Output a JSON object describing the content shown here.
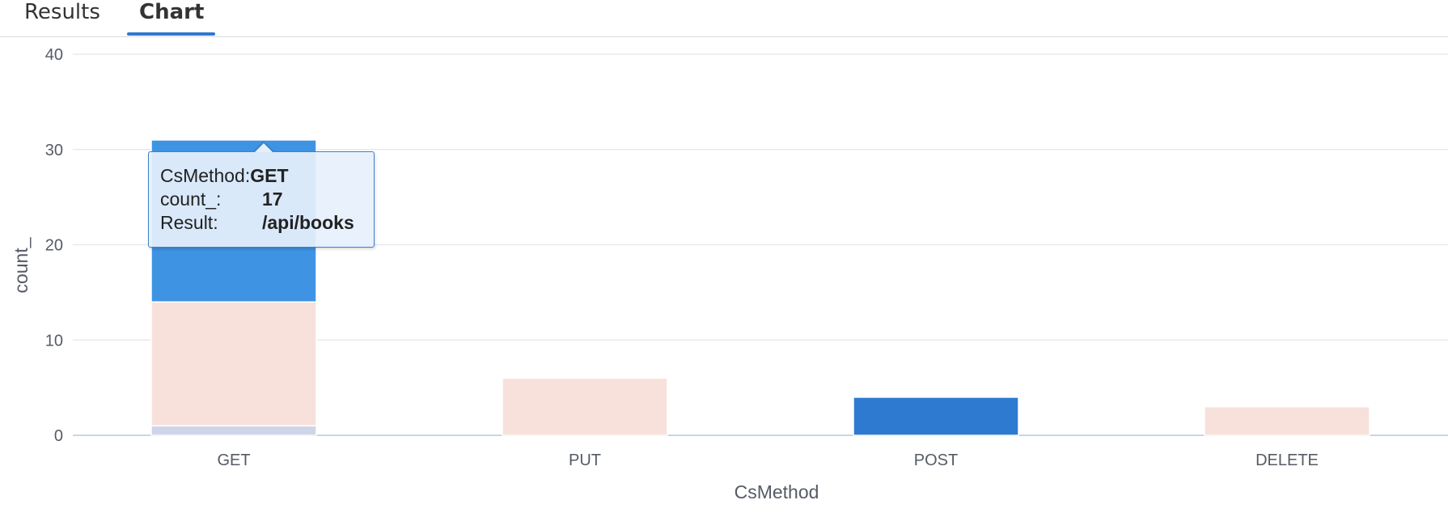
{
  "tabs": [
    {
      "label": "Results",
      "active": false
    },
    {
      "label": "Chart",
      "active": true
    }
  ],
  "colors": {
    "accent": "#2f78d0",
    "series_blue": "#3f93e3",
    "series_blue_dark": "#2f7ad1",
    "series_peach": "#f8e1db",
    "series_lavender": "#cfd5e8",
    "grid": "#e3e6ea",
    "baseline": "#c9d4e6"
  },
  "chart_data": {
    "type": "bar",
    "stacked": true,
    "xlabel": "CsMethod",
    "ylabel": "count_",
    "ylim": [
      0,
      40
    ],
    "yticks": [
      0,
      10,
      20,
      30,
      40
    ],
    "categories": [
      "GET",
      "PUT",
      "POST",
      "DELETE"
    ],
    "grid": true,
    "bars": [
      {
        "category": "GET",
        "segments": [
          {
            "value": 1,
            "color": "#cfd5e8"
          },
          {
            "value": 13,
            "color": "#f8e1db"
          },
          {
            "value": 17,
            "color": "#3f93e3"
          }
        ]
      },
      {
        "category": "PUT",
        "segments": [
          {
            "value": 6,
            "color": "#f8e1db"
          }
        ]
      },
      {
        "category": "POST",
        "segments": [
          {
            "value": 4,
            "color": "#2f7ad1"
          }
        ]
      },
      {
        "category": "DELETE",
        "segments": [
          {
            "value": 3,
            "color": "#f8e1db"
          }
        ]
      }
    ]
  },
  "tooltip": {
    "rows": [
      {
        "key": "CsMethod:",
        "value": "GET"
      },
      {
        "key": "count_:",
        "value": "17"
      },
      {
        "key": "Result:",
        "value": "/api/books"
      }
    ]
  }
}
